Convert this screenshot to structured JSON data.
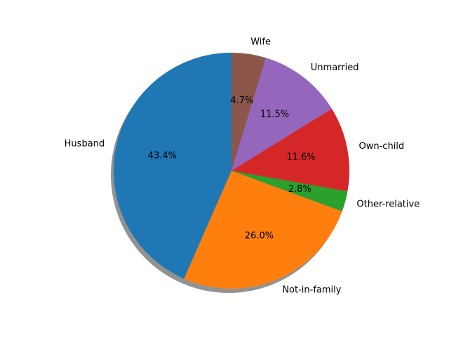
{
  "chart_data": {
    "type": "pie",
    "title": "",
    "start_angle_deg": 90,
    "counterclockwise": true,
    "shadow": true,
    "categories": [
      "Wife",
      "Unmarried",
      "Own-child",
      "Other-relative",
      "Not-in-family",
      "Husband"
    ],
    "values": [
      4.7,
      11.5,
      11.6,
      2.8,
      26.0,
      43.4
    ],
    "percent_labels": [
      "4.7%",
      "11.5%",
      "11.6%",
      "2.8%",
      "26.0%",
      "43.4%"
    ],
    "colors": [
      "#8c564b",
      "#9467bd",
      "#d62728",
      "#2ca02c",
      "#ff7f0e",
      "#1f77b4"
    ],
    "plotting_order": [
      "Husband",
      "Not-in-family",
      "Other-relative",
      "Own-child",
      "Unmarried",
      "Wife"
    ]
  }
}
